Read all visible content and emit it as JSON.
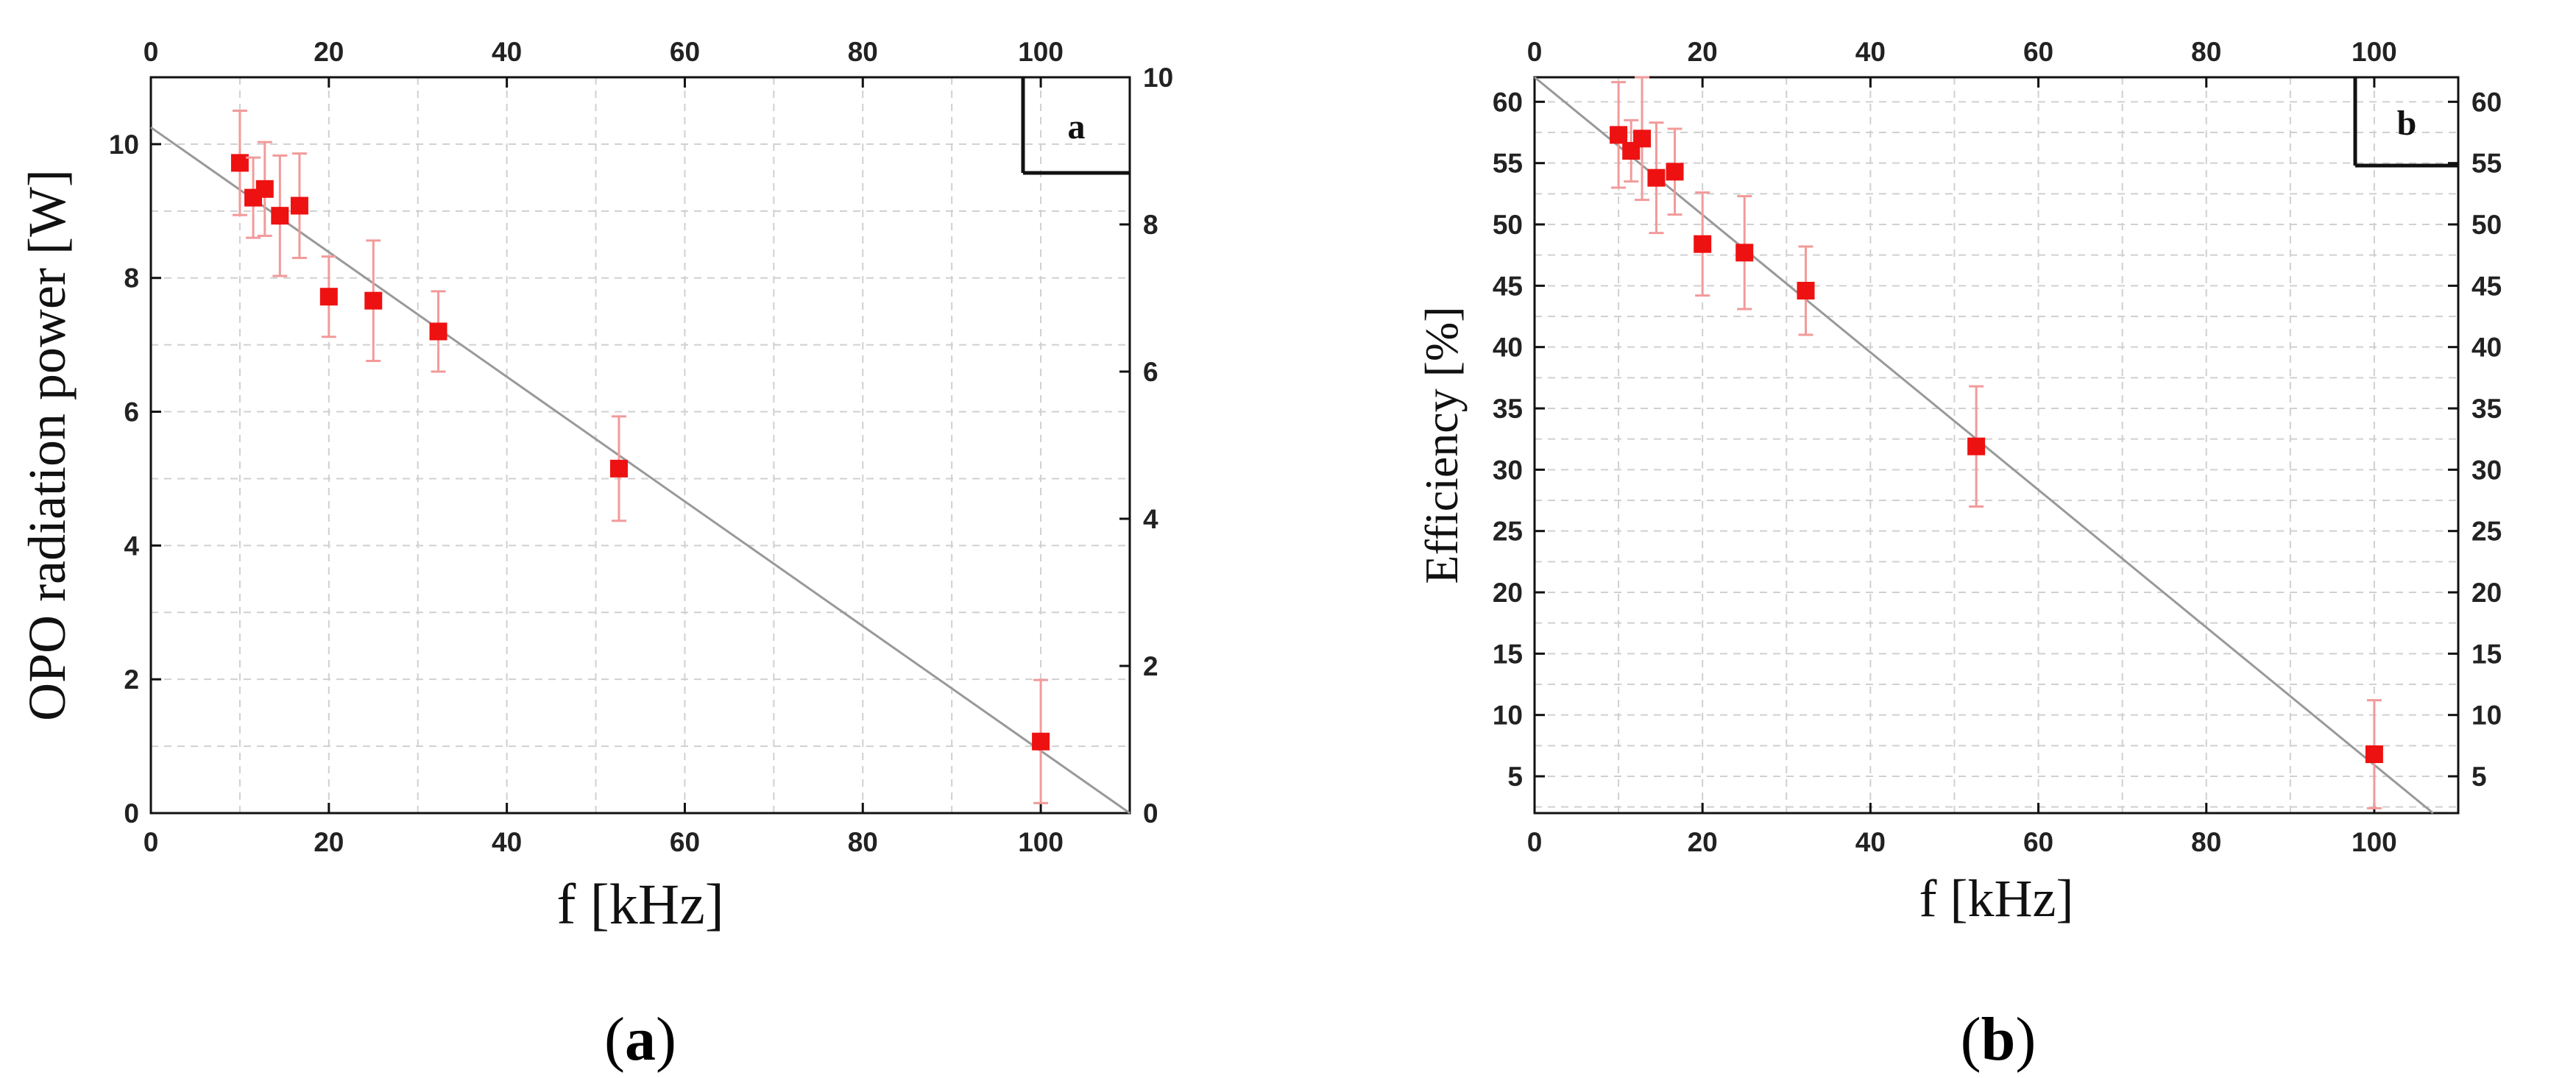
{
  "chart_data": [
    {
      "type": "scatter",
      "panel_label": "a",
      "caption": {
        "open": "(",
        "letter": "a",
        "close": ")"
      },
      "xlabel": "f [kHz]",
      "ylabel": "OPO radiation power [W]",
      "xlim": [
        0,
        110
      ],
      "ylim": [
        0,
        11
      ],
      "right_ylim": [
        0,
        10
      ],
      "x_ticks": [
        "0",
        "20",
        "40",
        "60",
        "80",
        "100"
      ],
      "y_ticks": [
        "0",
        "2",
        "4",
        "6",
        "8",
        "10"
      ],
      "right_y_ticks": [
        "0",
        "2",
        "4",
        "6",
        "8",
        "10"
      ],
      "grid": true,
      "marker_color": "#ee1111",
      "errorbar_color": "#f29a9a",
      "fit_line_color": "#999999",
      "points": [
        {
          "x": 10.0,
          "y": 9.72,
          "err": 0.78
        },
        {
          "x": 11.5,
          "y": 9.2,
          "err": 0.6
        },
        {
          "x": 12.8,
          "y": 9.33,
          "err": 0.7
        },
        {
          "x": 14.5,
          "y": 8.93,
          "err": 0.9
        },
        {
          "x": 16.7,
          "y": 9.08,
          "err": 0.78
        },
        {
          "x": 20.0,
          "y": 7.72,
          "err": 0.6
        },
        {
          "x": 25.0,
          "y": 7.66,
          "err": 0.9
        },
        {
          "x": 32.3,
          "y": 7.2,
          "err": 0.6
        },
        {
          "x": 52.6,
          "y": 5.15,
          "err": 0.78
        },
        {
          "x": 100.0,
          "y": 1.07,
          "err": 0.92
        }
      ],
      "fit_line": {
        "x": [
          0,
          110
        ],
        "y": [
          10.25,
          0
        ]
      }
    },
    {
      "type": "scatter",
      "panel_label": "b",
      "caption": {
        "open": "(",
        "letter": "b",
        "close": ")"
      },
      "xlabel": "f [kHz]",
      "ylabel": "Efficiency [%]",
      "xlim": [
        0,
        110
      ],
      "ylim": [
        2,
        62
      ],
      "x_ticks": [
        "0",
        "20",
        "40",
        "60",
        "80",
        "100"
      ],
      "y_ticks": [
        "5",
        "10",
        "15",
        "20",
        "25",
        "30",
        "35",
        "40",
        "45",
        "50",
        "55",
        "60"
      ],
      "right_y_ticks": [
        "5",
        "10",
        "15",
        "20",
        "25",
        "30",
        "35",
        "40",
        "45",
        "50",
        "55",
        "60"
      ],
      "grid": true,
      "marker_color": "#ee1111",
      "errorbar_color": "#f29a9a",
      "fit_line_color": "#999999",
      "points": [
        {
          "x": 10.0,
          "y": 57.3,
          "err": 4.3
        },
        {
          "x": 11.5,
          "y": 56.0,
          "err": 2.5
        },
        {
          "x": 12.8,
          "y": 57.0,
          "err": 5.0
        },
        {
          "x": 14.5,
          "y": 53.8,
          "err": 4.5
        },
        {
          "x": 16.7,
          "y": 54.3,
          "err": 3.5
        },
        {
          "x": 20.0,
          "y": 48.4,
          "err": 4.2
        },
        {
          "x": 25.0,
          "y": 47.7,
          "err": 4.6
        },
        {
          "x": 32.3,
          "y": 44.6,
          "err": 3.6
        },
        {
          "x": 52.6,
          "y": 31.9,
          "err": 4.9
        },
        {
          "x": 100.0,
          "y": 6.8,
          "err": 4.4
        }
      ],
      "fit_line": {
        "x": [
          0,
          107
        ],
        "y": [
          62,
          2
        ]
      }
    }
  ]
}
